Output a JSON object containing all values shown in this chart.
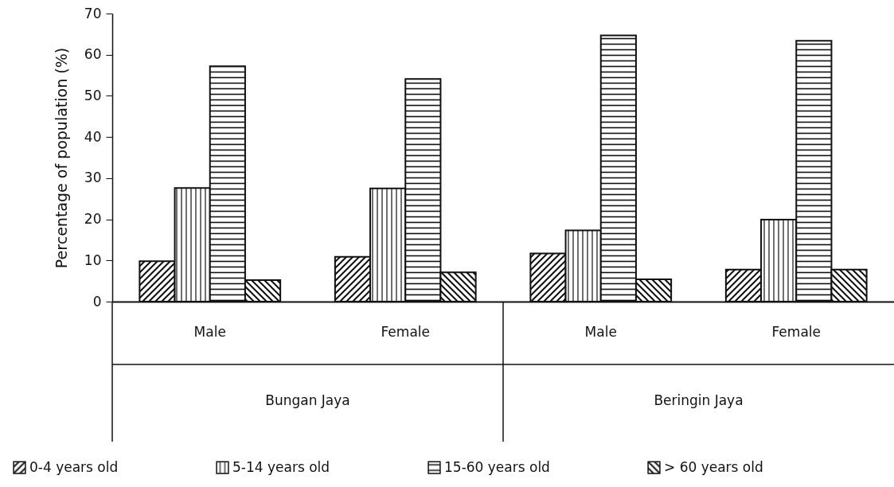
{
  "chart_data": {
    "type": "bar",
    "ylabel": "Percentage of population (%)",
    "categories": [
      "Male",
      "Female",
      "Male",
      "Female"
    ],
    "annotations": [
      "Bungan Jaya",
      "Beringin Jaya"
    ],
    "series": [
      {
        "name": "0-4 years old",
        "color": "#111111",
        "values": [
          9.8,
          10.9,
          11.7,
          7.8
        ]
      },
      {
        "name": "5-14 years old",
        "color": "#111111",
        "values": [
          27.6,
          27.5,
          17.3,
          19.9
        ]
      },
      {
        "name": "15-60 years old",
        "color": "#111111",
        "values": [
          57.2,
          54.1,
          64.7,
          63.4
        ]
      },
      {
        "name": "> 60 years old",
        "color": "#111111",
        "values": [
          5.2,
          7.1,
          5.4,
          7.8
        ]
      }
    ],
    "ylim": [
      0,
      70
    ],
    "yticks": [
      0,
      10,
      20,
      30,
      40,
      50,
      60,
      70
    ],
    "grid": false,
    "legend": "bottom"
  }
}
